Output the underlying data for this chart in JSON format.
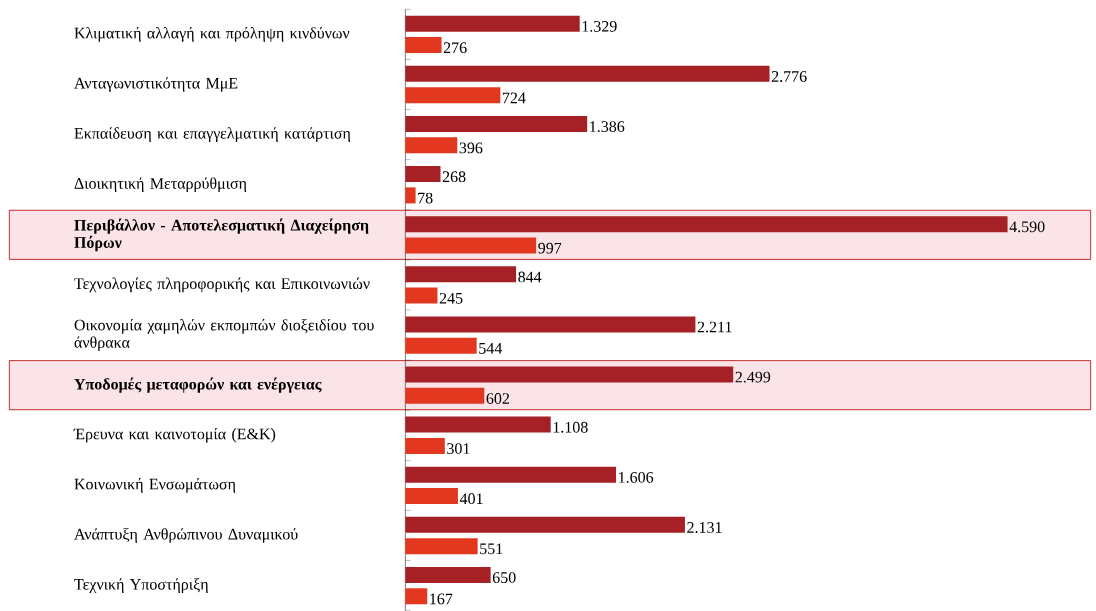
{
  "chart_data": {
    "type": "bar",
    "orientation": "horizontal",
    "categories": [
      "Κλιματική αλλαγή και πρόληψη κινδύνων",
      "Ανταγωνιστικότητα ΜμΕ",
      "Εκπαίδευση και επαγγελματική κατάρτιση",
      "Διοικητική Μεταρρύθμιση",
      "**Περιβάλλον - Αποτελεσματική Διαχείρηση Πόρων**",
      "Τεχνολογίες πληροφορικής και Επικοινωνιών",
      "Οικονομία χαμηλών εκπομπών διοξειδίου του άνθρακα",
      "**Υποδομές μεταφορών και ενέργειας**",
      "Έρευνα και καινοτομία (Ε&Κ)",
      "Κοινωνική Ενσωμάτωση",
      "Ανάπτυξη Ανθρώπινου Δυναμικού",
      "Τεχνική Υποστήριξη"
    ],
    "series": [
      {
        "color": "#a52126",
        "values": [
          1329,
          2776,
          1386,
          268,
          4590,
          844,
          2211,
          2499,
          1108,
          1606,
          2131,
          650
        ],
        "value_labels": [
          "1.329",
          "2.776",
          "1.386",
          "268",
          "4.590",
          "844",
          "2.211",
          "2.499",
          "1.108",
          "1.606",
          "2.131",
          "650"
        ]
      },
      {
        "color": "#e2381f",
        "values": [
          276,
          724,
          396,
          78,
          997,
          245,
          544,
          602,
          301,
          401,
          551,
          167
        ],
        "value_labels": [
          "276",
          "724",
          "396",
          "78",
          "997",
          "245",
          "544",
          "602",
          "301",
          "401",
          "551",
          "167"
        ]
      }
    ],
    "bands": [
      {
        "axis": "y",
        "from": "**Περιβάλλον - Αποτελεσματική Διαχείρηση Πόρων**",
        "to": "**Περιβάλλον - Αποτελεσματική Διαχείρηση Πόρων**",
        "color": "#fbe4e7"
      },
      {
        "axis": "y",
        "from": "**Υποδομές μεταφορών και ενέργειας**",
        "to": "**Υποδομές μεταφορών και ενέργειας**",
        "color": "#fbe4e7"
      }
    ]
  }
}
